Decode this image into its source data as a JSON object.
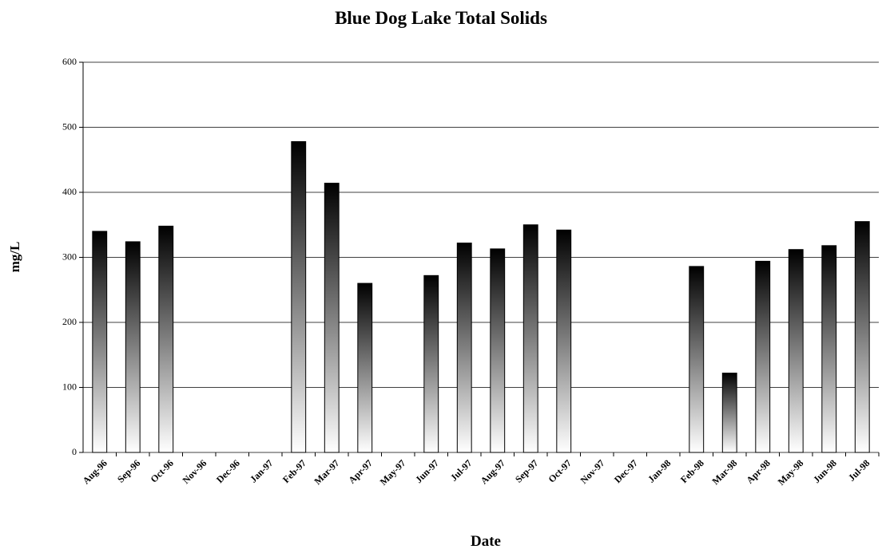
{
  "chart_data": {
    "type": "bar",
    "title": "Blue Dog Lake Total Solids",
    "x_label": "Date",
    "y_label": "mg/L",
    "categories": [
      "Aug-96",
      "Sep-96",
      "Oct-96",
      "Nov-96",
      "Dec-96",
      "Jan-97",
      "Feb-97",
      "Mar-97",
      "Apr-97",
      "May-97",
      "Jun-97",
      "Jul-97",
      "Aug-97",
      "Sep-97",
      "Oct-97",
      "Nov-97",
      "Dec-97",
      "Jan-98",
      "Feb-98",
      "Mar-98",
      "Apr-98",
      "May-98",
      "Jun-98",
      "Jul-98"
    ],
    "values": [
      340,
      324,
      348,
      null,
      null,
      null,
      478,
      414,
      260,
      null,
      272,
      322,
      313,
      350,
      342,
      null,
      null,
      null,
      286,
      122,
      294,
      312,
      318,
      355
    ],
    "color": "#000000",
    "ylim": [
      0,
      600
    ],
    "yticks": [
      0,
      100,
      200,
      300,
      400,
      500,
      600
    ],
    "grid": true
  }
}
